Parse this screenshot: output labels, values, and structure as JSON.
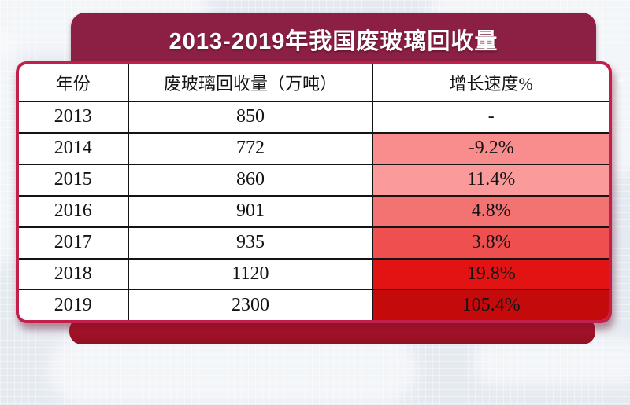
{
  "title": "2013-2019年我国废玻璃回收量",
  "colors": {
    "banner": "#8C1F44",
    "card_border": "#C2204A",
    "ribbon": "#C5182F",
    "heat_ramp": [
      "#FFFFFF",
      "#F98D8D",
      "#FA9A9A",
      "#F37373",
      "#F04F4F",
      "#E11313",
      "#C40A0A"
    ]
  },
  "table": {
    "columns": [
      "年份",
      "废玻璃回收量（万吨）",
      "增长速度%"
    ],
    "rows": [
      {
        "year": "2013",
        "volume": "850",
        "growth": "-",
        "growth_bg": "#FFFFFF"
      },
      {
        "year": "2014",
        "volume": "772",
        "growth": "-9.2%",
        "growth_bg": "#F98D8D"
      },
      {
        "year": "2015",
        "volume": "860",
        "growth": "11.4%",
        "growth_bg": "#FA9A9A"
      },
      {
        "year": "2016",
        "volume": "901",
        "growth": "4.8%",
        "growth_bg": "#F37373"
      },
      {
        "year": "2017",
        "volume": "935",
        "growth": "3.8%",
        "growth_bg": "#F04F4F"
      },
      {
        "year": "2018",
        "volume": "1120",
        "growth": "19.8%",
        "growth_bg": "#E11313"
      },
      {
        "year": "2019",
        "volume": "2300",
        "growth": "105.4%",
        "growth_bg": "#C40A0A"
      }
    ]
  },
  "chart_data": {
    "type": "table",
    "title": "2013-2019年我国废玻璃回收量",
    "columns": [
      "年份",
      "废玻璃回收量（万吨）",
      "增长速度%"
    ],
    "years": [
      2013,
      2014,
      2015,
      2016,
      2017,
      2018,
      2019
    ],
    "volume_wan_tons": [
      850,
      772,
      860,
      901,
      935,
      1120,
      2300
    ],
    "growth_pct": [
      null,
      -9.2,
      11.4,
      4.8,
      3.8,
      19.8,
      105.4
    ]
  },
  "decor": {
    "sparkle": "+"
  }
}
